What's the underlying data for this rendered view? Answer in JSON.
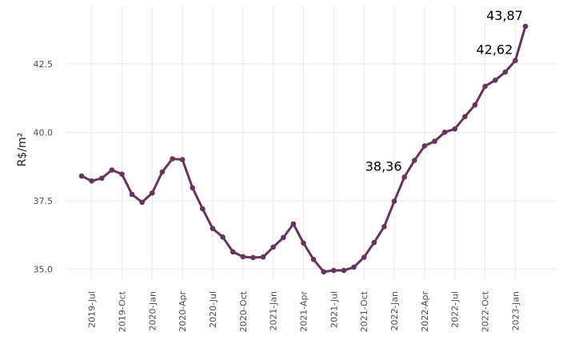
{
  "chart_data": {
    "type": "line",
    "title": "",
    "xlabel": "",
    "ylabel": "R$/m²",
    "ylim": [
      34.6,
      44.6
    ],
    "y_ticks": [
      35.0,
      37.5,
      40.0,
      42.5
    ],
    "y_tick_labels": [
      "35.0",
      "37.5",
      "40.0",
      "42.5"
    ],
    "x_ticks": [
      "2019-07",
      "2019-10",
      "2020-01",
      "2020-04",
      "2020-07",
      "2020-10",
      "2021-01",
      "2021-04",
      "2021-07",
      "2021-10",
      "2022-01",
      "2022-04",
      "2022-07",
      "2022-10",
      "2023-01"
    ],
    "x_tick_labels": [
      "2019-Jul",
      "2019-Oct",
      "2020-Jan",
      "2020-Apr",
      "2020-Jul",
      "2020-Oct",
      "2021-Jan",
      "2021-Apr",
      "2021-Jul",
      "2021-Oct",
      "2022-Jan",
      "2022-Apr",
      "2022-Jul",
      "2022-Oct",
      "2023-Jan"
    ],
    "grid": true,
    "series_color": "#66355e",
    "series": [
      {
        "x": [
          "2019-06",
          "2019-07",
          "2019-08",
          "2019-09",
          "2019-10",
          "2019-11",
          "2019-12",
          "2020-01",
          "2020-02",
          "2020-03",
          "2020-04",
          "2020-05",
          "2020-06",
          "2020-07",
          "2020-08",
          "2020-09",
          "2020-10",
          "2020-11",
          "2020-12",
          "2021-01",
          "2021-02",
          "2021-03",
          "2021-04",
          "2021-05",
          "2021-06",
          "2021-07",
          "2021-08",
          "2021-09",
          "2021-10",
          "2021-11",
          "2021-12",
          "2022-01",
          "2022-02",
          "2022-03",
          "2022-04",
          "2022-05",
          "2022-06",
          "2022-07",
          "2022-08",
          "2022-09",
          "2022-10",
          "2022-11",
          "2022-12",
          "2023-01",
          "2023-02"
        ],
        "values": [
          38.4,
          38.22,
          38.32,
          38.62,
          38.47,
          37.73,
          37.44,
          37.78,
          38.55,
          39.03,
          39.0,
          37.97,
          37.2,
          36.48,
          36.17,
          35.63,
          35.45,
          35.42,
          35.44,
          35.8,
          36.15,
          36.65,
          35.95,
          35.35,
          34.9,
          34.95,
          34.95,
          35.07,
          35.43,
          35.97,
          36.55,
          37.48,
          38.36,
          38.97,
          39.5,
          39.67,
          40.0,
          40.12,
          40.57,
          41.0,
          41.68,
          41.9,
          42.2,
          42.62,
          43.87
        ]
      }
    ],
    "annotations": [
      {
        "x": "2022-02",
        "text": "38,36"
      },
      {
        "x": "2023-01",
        "text": "42,62"
      },
      {
        "x": "2023-02",
        "text": "43,87"
      }
    ]
  }
}
